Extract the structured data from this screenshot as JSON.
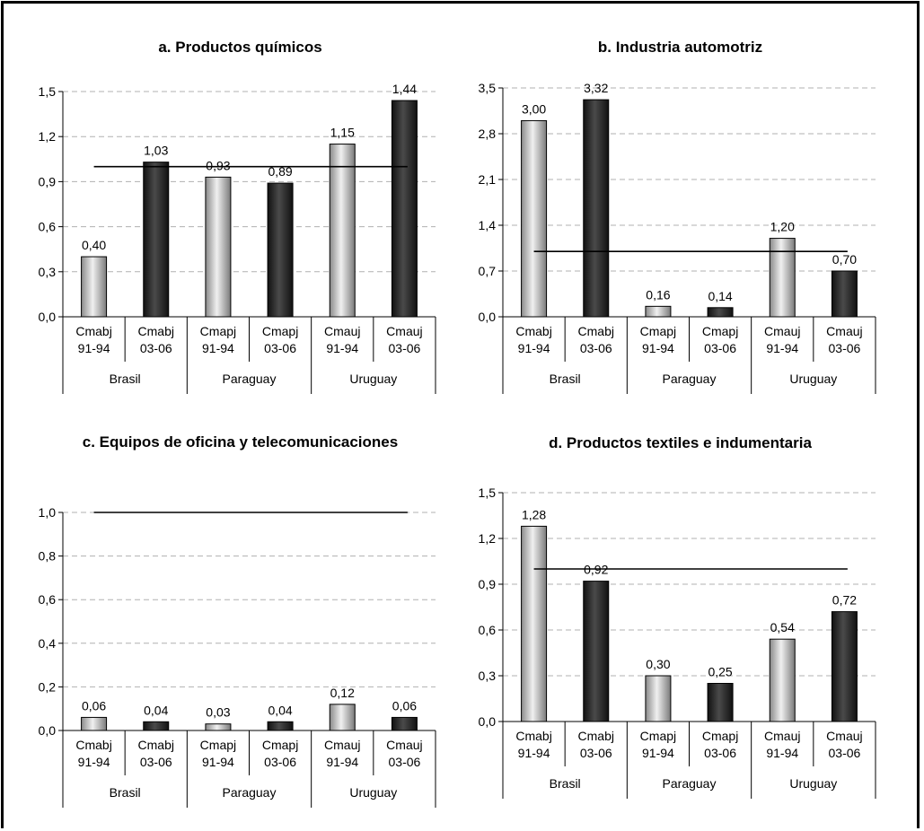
{
  "colors": {
    "light_series": "#b8b8b8",
    "dark_series": "#2a2a2a",
    "gridline": "#b0b0b0",
    "reference_line": "#000000"
  },
  "chart_data": [
    {
      "type": "bar",
      "title": "a. Productos químicos",
      "categories": [
        [
          "Cmabj",
          "91-94"
        ],
        [
          "Cmabj",
          "03-06"
        ],
        [
          "Cmapj",
          "91-94"
        ],
        [
          "Cmapj",
          "03-06"
        ],
        [
          "Cmauj",
          "91-94"
        ],
        [
          "Cmauj",
          "03-06"
        ]
      ],
      "groups": [
        "Brasil",
        "Paraguay",
        "Uruguay"
      ],
      "values": [
        0.4,
        1.03,
        0.93,
        0.89,
        1.15,
        1.44
      ],
      "value_labels": [
        "0,40",
        "1,03",
        "0,93",
        "0,89",
        "1,15",
        "1,44"
      ],
      "bar_shades": [
        "light",
        "dark",
        "light",
        "dark",
        "light",
        "dark"
      ],
      "ylim": [
        0,
        1.5
      ],
      "yticks": [
        "0,0",
        "0,3",
        "0,6",
        "0,9",
        "1,2",
        "1,5"
      ],
      "reference_line": 1.0,
      "grid": true
    },
    {
      "type": "bar",
      "title": "b. Industria automotriz",
      "categories": [
        [
          "Cmabj",
          "91-94"
        ],
        [
          "Cmabj",
          "03-06"
        ],
        [
          "Cmapj",
          "91-94"
        ],
        [
          "Cmapj",
          "03-06"
        ],
        [
          "Cmauj",
          "91-94"
        ],
        [
          "Cmauj",
          "03-06"
        ]
      ],
      "groups": [
        "Brasil",
        "Paraguay",
        "Uruguay"
      ],
      "values": [
        3.0,
        3.32,
        0.16,
        0.14,
        1.2,
        0.7
      ],
      "value_labels": [
        "3,00",
        "3,32",
        "0,16",
        "0,14",
        "1,20",
        "0,70"
      ],
      "bar_shades": [
        "light",
        "dark",
        "light",
        "dark",
        "light",
        "dark"
      ],
      "ylim": [
        0,
        3.5
      ],
      "yticks": [
        "0,0",
        "0,7",
        "1,4",
        "2,1",
        "2,8",
        "3,5"
      ],
      "reference_line": 1.0,
      "grid": true
    },
    {
      "type": "bar",
      "title": "c. Equipos de oficina y telecomunicaciones",
      "categories": [
        [
          "Cmabj",
          "91-94"
        ],
        [
          "Cmabj",
          "03-06"
        ],
        [
          "Cmapj",
          "91-94"
        ],
        [
          "Cmapj",
          "03-06"
        ],
        [
          "Cmauj",
          "91-94"
        ],
        [
          "Cmauj",
          "03-06"
        ]
      ],
      "groups": [
        "Brasil",
        "Paraguay",
        "Uruguay"
      ],
      "values": [
        0.06,
        0.04,
        0.03,
        0.04,
        0.12,
        0.06
      ],
      "value_labels": [
        "0,06",
        "0,04",
        "0,03",
        "0,04",
        "0,12",
        "0,06"
      ],
      "bar_shades": [
        "light",
        "dark",
        "light",
        "dark",
        "light",
        "dark"
      ],
      "ylim": [
        0,
        1.0
      ],
      "yticks": [
        "0,0",
        "0,2",
        "0,4",
        "0,6",
        "0,8",
        "1,0"
      ],
      "reference_line": 1.0,
      "grid": true
    },
    {
      "type": "bar",
      "title": "d. Productos textiles e indumentaria",
      "categories": [
        [
          "Cmabj",
          "91-94"
        ],
        [
          "Cmabj",
          "03-06"
        ],
        [
          "Cmapj",
          "91-94"
        ],
        [
          "Cmapj",
          "03-06"
        ],
        [
          "Cmauj",
          "91-94"
        ],
        [
          "Cmauj",
          "03-06"
        ]
      ],
      "groups": [
        "Brasil",
        "Paraguay",
        "Uruguay"
      ],
      "values": [
        1.28,
        0.92,
        0.3,
        0.25,
        0.54,
        0.72
      ],
      "value_labels": [
        "1,28",
        "0,92",
        "0,30",
        "0,25",
        "0,54",
        "0,72"
      ],
      "bar_shades": [
        "light",
        "dark",
        "light",
        "dark",
        "light",
        "dark"
      ],
      "ylim": [
        0,
        1.5
      ],
      "yticks": [
        "0,0",
        "0,3",
        "0,6",
        "0,9",
        "1,2",
        "1,5"
      ],
      "reference_line": 1.0,
      "grid": true
    }
  ]
}
